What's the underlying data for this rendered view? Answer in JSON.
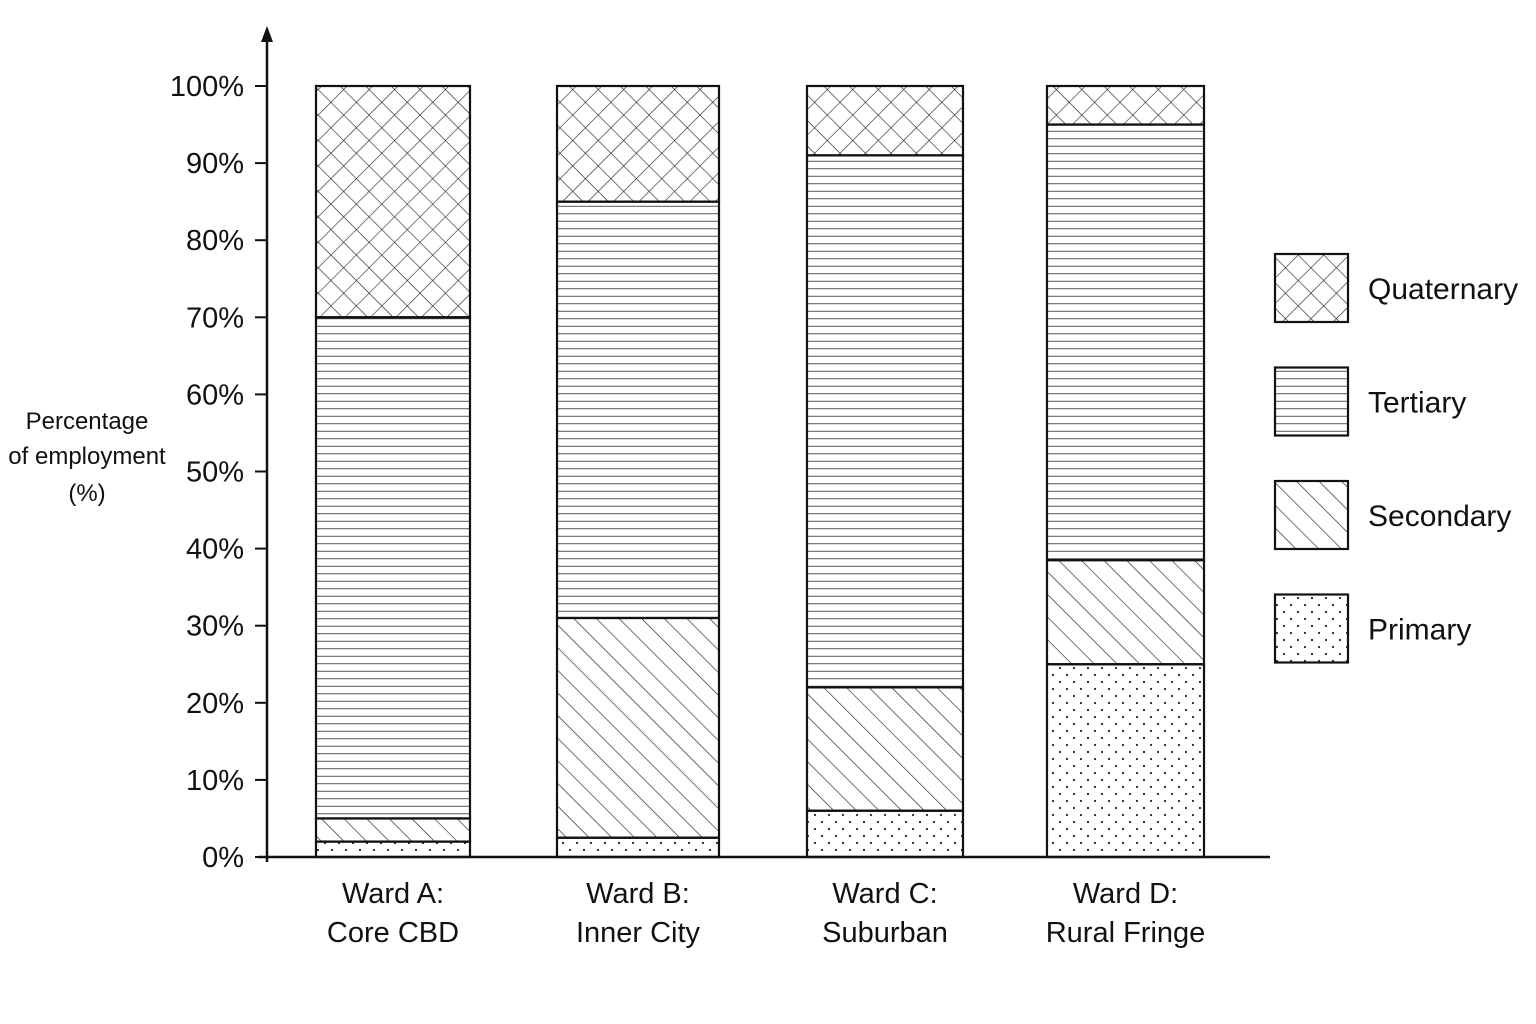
{
  "chart_data": {
    "type": "bar",
    "stacked": true,
    "categories": [
      [
        "Ward A:",
        "Core CBD"
      ],
      [
        "Ward B:",
        "Inner City"
      ],
      [
        "Ward C:",
        "Suburban"
      ],
      [
        "Ward D:",
        "Rural Fringe"
      ]
    ],
    "series": [
      {
        "name": "Primary",
        "values": [
          2,
          2.5,
          6,
          25
        ]
      },
      {
        "name": "Secondary",
        "values": [
          3,
          28.5,
          16,
          13.5
        ]
      },
      {
        "name": "Tertiary",
        "values": [
          65,
          54,
          69,
          56.5
        ]
      },
      {
        "name": "Quaternary",
        "values": [
          30,
          15,
          9,
          5
        ]
      }
    ],
    "patterns": {
      "Primary": "dots",
      "Secondary": "diagonal-hatch",
      "Tertiary": "horizontal-lines",
      "Quaternary": "crosshatch"
    },
    "legend_order": [
      "Quaternary",
      "Tertiary",
      "Secondary",
      "Primary"
    ],
    "ylabel": [
      "Percentage",
      "of employment",
      "(%)"
    ],
    "yticks": [
      "0%",
      "10%",
      "20%",
      "30%",
      "40%",
      "50%",
      "60%",
      "70%",
      "80%",
      "90%",
      "100%"
    ],
    "ylim": [
      0,
      100
    ],
    "legend_position": "right",
    "grid": false
  }
}
